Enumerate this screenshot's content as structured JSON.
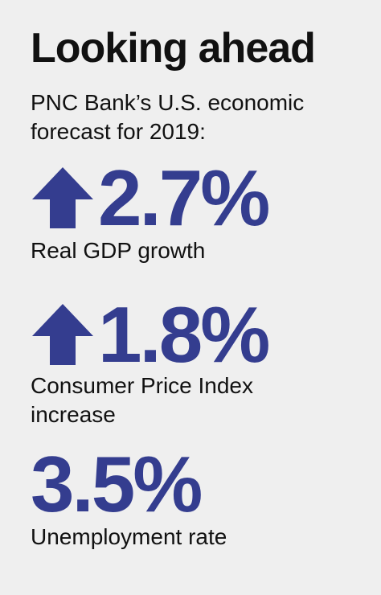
{
  "title": "Looking ahead",
  "subtitle": "PNC Bank’s U.S. economic forecast for 2019:",
  "accent_color": "#343d8f",
  "stats": [
    {
      "value": "2.7%",
      "label": "Real GDP growth",
      "icon": "up-arrow-icon"
    },
    {
      "value": "1.8%",
      "label": "Consumer Price Index increase",
      "icon": "up-arrow-icon"
    },
    {
      "value": "3.5%",
      "label": "Unemployment rate"
    }
  ]
}
